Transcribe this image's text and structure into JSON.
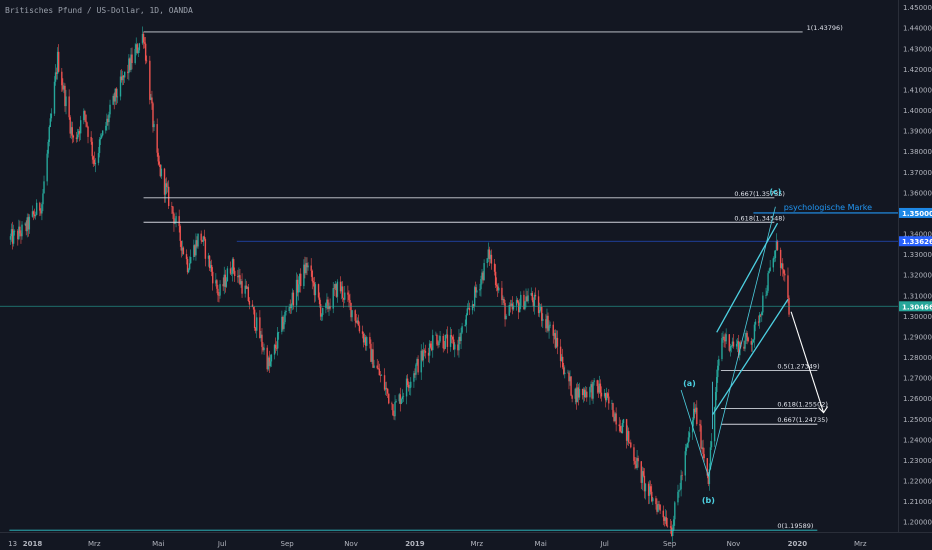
{
  "header": {
    "symbol_title": "Britisches Pfund / US-Dollar, 1D, OANDA"
  },
  "chart_data": {
    "type": "candlestick",
    "y_range": [
      1.195,
      1.452
    ],
    "y_ticks": [
      1.45,
      1.44,
      1.43,
      1.42,
      1.41,
      1.4,
      1.39,
      1.38,
      1.37,
      1.36,
      1.35,
      1.34,
      1.33,
      1.32,
      1.31,
      1.3,
      1.29,
      1.28,
      1.27,
      1.26,
      1.25,
      1.24,
      1.23,
      1.22,
      1.21,
      1.2
    ],
    "y_tick_labels": [
      "1.45000",
      "1.44000",
      "1.43000",
      "1.42000",
      "1.41000",
      "1.40000",
      "1.39000",
      "1.38000",
      "1.37000",
      "1.36000",
      "1.35000",
      "1.34000",
      "1.33000",
      "1.32000",
      "1.31000",
      "1.30000",
      "1.29000",
      "1.28000",
      "1.27000",
      "1.26000",
      "1.25000",
      "1.24000",
      "1.23000",
      "1.22000",
      "1.21000",
      "1.20000"
    ],
    "x_ticks": [
      {
        "date": "2017-12-13",
        "label": "13"
      },
      {
        "date": "2018-01-01",
        "label": "2018"
      },
      {
        "date": "2018-03-01",
        "label": "Mrz"
      },
      {
        "date": "2018-05-01",
        "label": "Mai"
      },
      {
        "date": "2018-07-01",
        "label": "Jul"
      },
      {
        "date": "2018-09-01",
        "label": "Sep"
      },
      {
        "date": "2018-11-01",
        "label": "Nov"
      },
      {
        "date": "2019-01-01",
        "label": "2019"
      },
      {
        "date": "2019-03-01",
        "label": "Mrz"
      },
      {
        "date": "2019-05-01",
        "label": "Mai"
      },
      {
        "date": "2019-07-01",
        "label": "Jul"
      },
      {
        "date": "2019-09-01",
        "label": "Sep"
      },
      {
        "date": "2019-11-01",
        "label": "Nov"
      },
      {
        "date": "2020-01-01",
        "label": "2020"
      },
      {
        "date": "2020-03-01",
        "label": "Mrz"
      }
    ],
    "price_path": [
      [
        "2017-12-10",
        1.337
      ],
      [
        "2017-12-25",
        1.342
      ],
      [
        "2018-01-10",
        1.355
      ],
      [
        "2018-01-25",
        1.425
      ],
      [
        "2018-02-09",
        1.385
      ],
      [
        "2018-02-20",
        1.398
      ],
      [
        "2018-03-01",
        1.375
      ],
      [
        "2018-03-20",
        1.405
      ],
      [
        "2018-04-17",
        1.437
      ],
      [
        "2018-04-30",
        1.375
      ],
      [
        "2018-05-15",
        1.35
      ],
      [
        "2018-05-29",
        1.325
      ],
      [
        "2018-06-10",
        1.34
      ],
      [
        "2018-06-28",
        1.31
      ],
      [
        "2018-07-10",
        1.325
      ],
      [
        "2018-07-25",
        1.31
      ],
      [
        "2018-08-15",
        1.275
      ],
      [
        "2018-08-30",
        1.3
      ],
      [
        "2018-09-20",
        1.325
      ],
      [
        "2018-10-05",
        1.3
      ],
      [
        "2018-10-20",
        1.315
      ],
      [
        "2018-11-05",
        1.3
      ],
      [
        "2018-11-25",
        1.275
      ],
      [
        "2018-12-12",
        1.255
      ],
      [
        "2019-01-02",
        1.275
      ],
      [
        "2019-01-20",
        1.29
      ],
      [
        "2019-02-10",
        1.285
      ],
      [
        "2019-03-13",
        1.33
      ],
      [
        "2019-03-29",
        1.3
      ],
      [
        "2019-04-20",
        1.31
      ],
      [
        "2019-05-10",
        1.295
      ],
      [
        "2019-06-01",
        1.262
      ],
      [
        "2019-06-25",
        1.265
      ],
      [
        "2019-07-20",
        1.245
      ],
      [
        "2019-08-10",
        1.215
      ],
      [
        "2019-08-25",
        1.205
      ],
      [
        "2019-09-03",
        1.197
      ],
      [
        "2019-09-25",
        1.255
      ],
      [
        "2019-10-08",
        1.222
      ],
      [
        "2019-10-20",
        1.29
      ],
      [
        "2019-11-05",
        1.285
      ],
      [
        "2019-11-20",
        1.29
      ],
      [
        "2019-12-13",
        1.335
      ],
      [
        "2019-12-24",
        1.304
      ]
    ],
    "horizontal_lines": [
      {
        "price": 1.43796,
        "label": "1(1.43796)",
        "from": "2018-04-17",
        "to": "2020-01-06",
        "color": "#d1d4dc"
      },
      {
        "price": 1.35735,
        "label": "0.667(1.35735)",
        "from": "2018-04-17",
        "to": "2019-12-10",
        "color": "#d1d4dc"
      },
      {
        "price": 1.34548,
        "label": "0.618(1.34548)",
        "from": "2018-04-17",
        "to": "2019-12-10",
        "color": "#d1d4dc"
      },
      {
        "price": 1.27349,
        "label": "0.5(1.27349)",
        "from": "2019-10-20",
        "to": "2020-01-20",
        "color": "#d1d4dc"
      },
      {
        "price": 1.25502,
        "label": "0.618(1.25502)",
        "from": "2019-10-20",
        "to": "2020-01-20",
        "color": "#d1d4dc"
      },
      {
        "price": 1.24735,
        "label": "0.667(1.24735)",
        "from": "2019-10-20",
        "to": "2020-01-20",
        "color": "#d1d4dc"
      },
      {
        "price": 1.19589,
        "label": "0(1.19589)",
        "from": "2017-12-10",
        "to": "2020-01-20",
        "color": "#2ec4c8"
      }
    ],
    "psych_line": {
      "price": 1.35,
      "label": "psychologische Marke",
      "color": "#2196f3"
    },
    "price_tags": [
      {
        "price": 1.35,
        "label": "1.35000",
        "color": "#1e88e5"
      },
      {
        "price": 1.33626,
        "label": "1.33626",
        "color": "#2962ff"
      },
      {
        "price": 1.30466,
        "label": "1.30466",
        "color": "#26a69a"
      }
    ],
    "wave_labels": [
      {
        "text": "(a)",
        "date": "2019-09-20",
        "price": 1.266
      },
      {
        "text": "(b)",
        "date": "2019-10-08",
        "price": 1.209
      },
      {
        "text": "(c)",
        "date": "2019-12-11",
        "price": 1.359
      }
    ],
    "colors": {
      "background": "#131722",
      "up": "#26a69a",
      "down": "#ef5350",
      "axis_text": "#b2b5be",
      "wave": "#4dd0e1"
    }
  }
}
